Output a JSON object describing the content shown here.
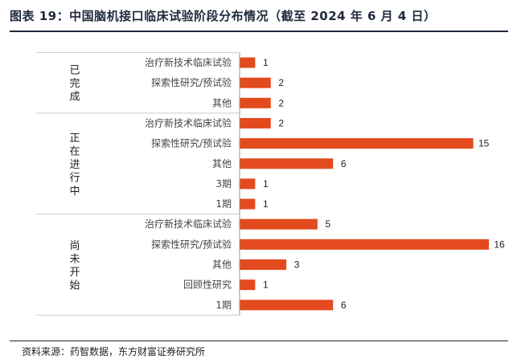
{
  "header": {
    "title": "图表 19：中国脑机接口临床试验阶段分布情况（截至 2024 年 6 月 4 日）"
  },
  "footer": {
    "source": "资料来源：药智数据，东方财富证券研究所"
  },
  "colors": {
    "bar": "#e34a1d",
    "rule": "#1f2a3c",
    "separator": "#cccccc",
    "axis": "#999999"
  },
  "chart_data": {
    "type": "bar",
    "orientation": "horizontal",
    "xlim": [
      0,
      16
    ],
    "groups": [
      {
        "name": "已完成",
        "categories": [
          "治疗新技术临床试验",
          "探索性研究/预试验",
          "其他"
        ],
        "values": [
          1,
          2,
          2
        ]
      },
      {
        "name": "正在进行中",
        "categories": [
          "治疗新技术临床试验",
          "探索性研究/预试验",
          "其他",
          "3期",
          "1期"
        ],
        "values": [
          2,
          15,
          6,
          1,
          1
        ]
      },
      {
        "name": "尚未开始",
        "categories": [
          "治疗新技术临床试验",
          "探索性研究/预试验",
          "其他",
          "回顾性研究",
          "1期"
        ],
        "values": [
          5,
          16,
          3,
          1,
          6
        ]
      }
    ]
  }
}
